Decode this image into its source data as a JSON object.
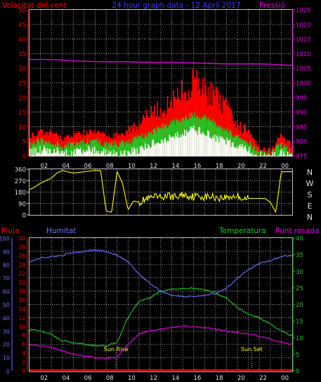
{
  "header": {
    "wind_label": "Velocitat del vent",
    "title": "24 hour graph data - 12 April 2017",
    "pressure_label": "Pressió"
  },
  "middle": {
    "compass": [
      "N",
      "W",
      "S",
      "E",
      "N"
    ]
  },
  "lower_header": {
    "rain_label": "Pluja",
    "humidity_label": "Humitat",
    "temp_label": "Temperatura",
    "dew_label": "Punt rosada"
  },
  "annotations": {
    "sunrise": "Sun Rise",
    "sunset": "Sun Set"
  },
  "x_ticks": [
    "02",
    "04",
    "06",
    "08",
    "10",
    "12",
    "14",
    "16",
    "18",
    "20",
    "22",
    "00"
  ],
  "colors": {
    "wind_max": "#ff0000",
    "wind_avg": "#22c622",
    "wind_min": "#ffffff",
    "pressure": "#e000e0",
    "direction": "#ffff00",
    "humidity": "#7070ff",
    "temperature": "#22c622",
    "dew": "#e000e0",
    "rain": "#ff0000",
    "grid": "#ffffff"
  },
  "chart_data": [
    {
      "type": "area",
      "title": "",
      "xlabel": "",
      "ylabel": "Velocitat del vent",
      "ylim": [
        0,
        50
      ],
      "y2label": "Pressió",
      "y2lim": [
        975,
        1025
      ],
      "y_ticks": [
        0,
        5,
        10,
        15,
        20,
        25,
        30,
        35,
        40,
        45,
        50
      ],
      "y2_ticks": [
        975,
        980,
        985,
        990,
        995,
        1000,
        1005,
        1010,
        1015,
        1020,
        1025
      ],
      "x_hours": [
        0,
        1,
        2,
        3,
        4,
        5,
        6,
        7,
        8,
        9,
        10,
        11,
        12,
        13,
        14,
        15,
        16,
        17,
        18,
        19,
        20,
        21,
        22,
        23,
        24
      ],
      "series": [
        {
          "name": "wind_max",
          "axis": "y",
          "values": [
            7,
            8,
            8,
            6,
            7,
            8,
            8,
            7,
            7,
            9,
            11,
            14,
            16,
            18,
            22,
            25,
            23,
            20,
            16,
            10,
            9,
            3,
            2,
            7,
            3
          ]
        },
        {
          "name": "wind_avg",
          "axis": "y",
          "values": [
            4,
            5,
            5,
            3,
            4,
            5,
            5,
            4,
            4,
            5,
            6,
            8,
            10,
            11,
            13,
            14,
            13,
            11,
            9,
            6,
            5,
            1,
            1,
            4,
            1
          ]
        },
        {
          "name": "wind_min",
          "axis": "y",
          "values": [
            1,
            2,
            2,
            1,
            1,
            2,
            2,
            1,
            1,
            1,
            2,
            4,
            5,
            6,
            8,
            9,
            8,
            6,
            5,
            3,
            2,
            0,
            0,
            1,
            0
          ]
        },
        {
          "name": "pressure",
          "axis": "y2",
          "values": [
            1008,
            1008,
            1008,
            1007.8,
            1007.5,
            1007.4,
            1007.3,
            1007.2,
            1007.2,
            1007.2,
            1007.1,
            1007.1,
            1007.0,
            1007.0,
            1006.9,
            1006.8,
            1006.7,
            1006.6,
            1006.5,
            1006.5,
            1006.5,
            1006.5,
            1006.4,
            1006.1,
            1006.0
          ]
        }
      ]
    },
    {
      "type": "line",
      "title": "",
      "ylabel": "",
      "ylim": [
        0,
        360
      ],
      "y_ticks": [
        0,
        90,
        180,
        270,
        360
      ],
      "x_hours": [
        0,
        0.5,
        1,
        1.5,
        2,
        2.5,
        3,
        3.5,
        4,
        4.5,
        5,
        5.5,
        6,
        6.5,
        7,
        7.5,
        8,
        8.5,
        9,
        9.5,
        10,
        10.5,
        11,
        11.5,
        12,
        12.5,
        13,
        13.5,
        14,
        14.5,
        15,
        15.5,
        16,
        16.5,
        17,
        17.5,
        18,
        18.5,
        19,
        19.5,
        20,
        20.5,
        21,
        21.5,
        22,
        22.5,
        23,
        23.5,
        24
      ],
      "series": [
        {
          "name": "direction",
          "values": [
            200,
            220,
            250,
            270,
            290,
            330,
            350,
            340,
            330,
            335,
            340,
            345,
            350,
            350,
            30,
            20,
            340,
            250,
            40,
            110,
            100,
            120,
            130,
            140,
            135,
            150,
            145,
            140,
            160,
            150,
            145,
            150,
            140,
            145,
            140,
            135,
            140,
            145,
            150,
            130,
            130,
            130,
            130,
            130,
            100,
            20,
            340,
            340,
            340
          ]
        }
      ]
    },
    {
      "type": "line",
      "title": "",
      "xlabel": "",
      "ylabel": "Humitat",
      "ylim": [
        0,
        100
      ],
      "y2label": "Temperatura",
      "y2lim": [
        0,
        40
      ],
      "y3label": "Pluja",
      "y3lim": [
        0,
        30
      ],
      "y_ticks": [
        0,
        10,
        20,
        30,
        40,
        50,
        60,
        70,
        80,
        90,
        100
      ],
      "y2_ticks": [
        0,
        5,
        10,
        15,
        20,
        25,
        30,
        35,
        40
      ],
      "y3_ticks": [
        0,
        2,
        4,
        6,
        8,
        10,
        12,
        14,
        16,
        18,
        20,
        22,
        24,
        26,
        28,
        30
      ],
      "x_hours": [
        0,
        1,
        2,
        3,
        4,
        5,
        6,
        7,
        8,
        9,
        10,
        11,
        12,
        13,
        14,
        15,
        16,
        17,
        18,
        19,
        20,
        21,
        22,
        23,
        24
      ],
      "series": [
        {
          "name": "Humitat",
          "axis": "y",
          "values": [
            82,
            85,
            86,
            87,
            89,
            90,
            91,
            90,
            87,
            82,
            73,
            66,
            60,
            57,
            56,
            56,
            57,
            58,
            62,
            70,
            76,
            81,
            83,
            86,
            87
          ]
        },
        {
          "name": "Temperatura",
          "axis": "y2",
          "values": [
            12.5,
            12,
            11,
            9,
            8.5,
            8,
            7.5,
            7.5,
            8.5,
            16,
            21,
            22,
            24,
            24.5,
            24.8,
            24.8,
            24.5,
            23.5,
            22,
            19,
            17,
            16,
            14,
            12,
            10.5
          ]
        },
        {
          "name": "Punt rosada",
          "axis": "y2",
          "values": [
            8,
            7.5,
            7,
            6,
            5,
            4.5,
            4,
            3.8,
            4,
            8,
            11,
            12,
            12.5,
            13,
            13.5,
            13.2,
            13,
            12.5,
            12,
            11.5,
            11,
            10.5,
            9.5,
            8.5,
            8
          ]
        },
        {
          "name": "Pluja",
          "axis": "y3",
          "values": [
            0,
            0,
            0,
            0,
            0,
            0,
            0,
            0,
            0,
            0,
            0,
            0,
            0,
            0,
            0,
            0,
            0,
            0,
            0,
            0,
            0,
            0,
            0,
            0,
            0
          ]
        }
      ],
      "sunrise_hour": 7.9,
      "sunset_hour": 20.3
    }
  ]
}
